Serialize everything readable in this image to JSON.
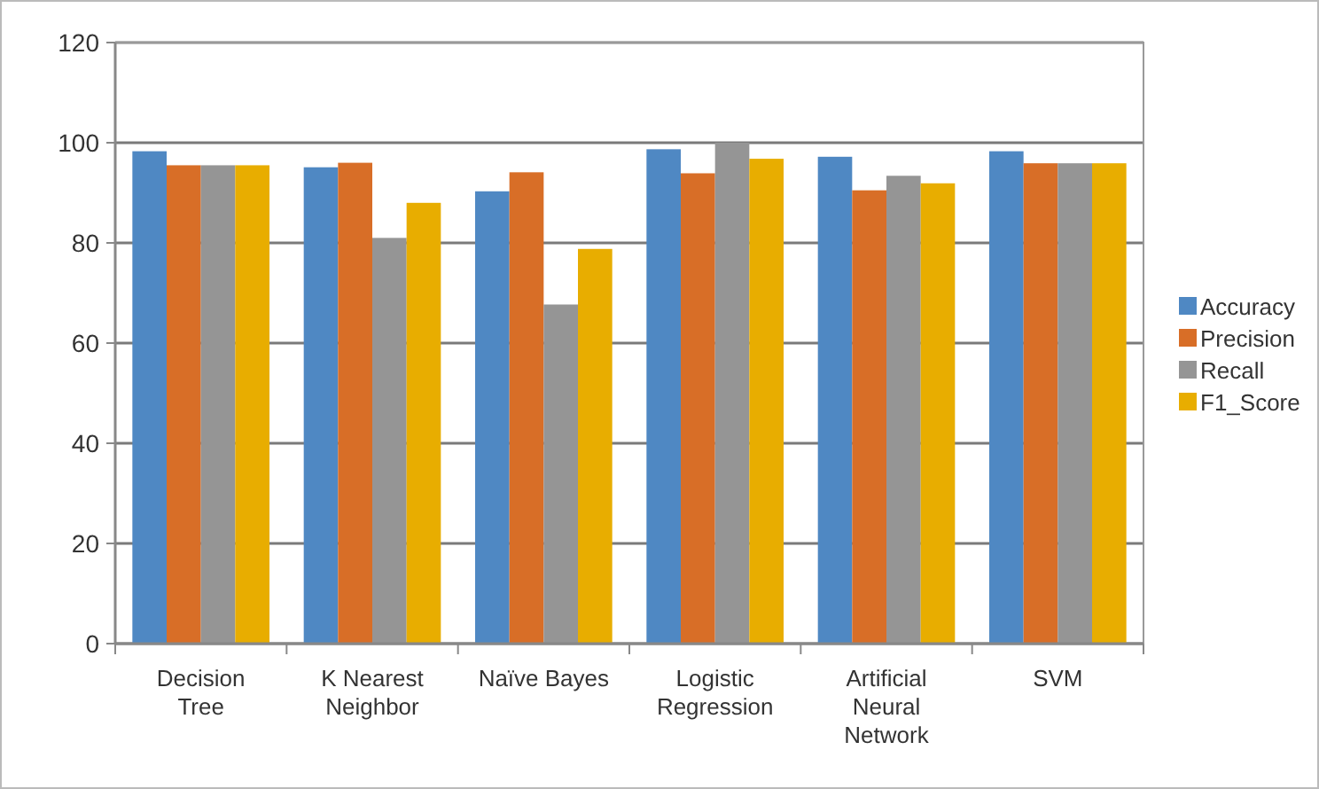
{
  "chart_data": {
    "type": "bar",
    "categories": [
      "Decision Tree",
      "K Nearest Neighbor",
      "Naïve Bayes",
      "Logistic Regression",
      "Artificial Neural Network",
      "SVM"
    ],
    "series": [
      {
        "name": "Accuracy",
        "color": "#4f88c3",
        "values": [
          98.3,
          95.1,
          90.3,
          98.7,
          97.2,
          98.3
        ]
      },
      {
        "name": "Precision",
        "color": "#d86e27",
        "values": [
          95.5,
          96.0,
          94.1,
          93.9,
          90.5,
          95.9
        ]
      },
      {
        "name": "Recall",
        "color": "#959595",
        "values": [
          95.5,
          81.0,
          67.7,
          100,
          93.4,
          95.9
        ]
      },
      {
        "name": "F1_Score",
        "color": "#e8ad00",
        "values": [
          95.5,
          88.0,
          78.8,
          96.8,
          91.9,
          95.9
        ]
      }
    ],
    "ylim": [
      0,
      120
    ],
    "yticks": [
      0,
      20,
      40,
      60,
      80,
      100,
      120
    ],
    "grid": "y",
    "legend": "right"
  }
}
